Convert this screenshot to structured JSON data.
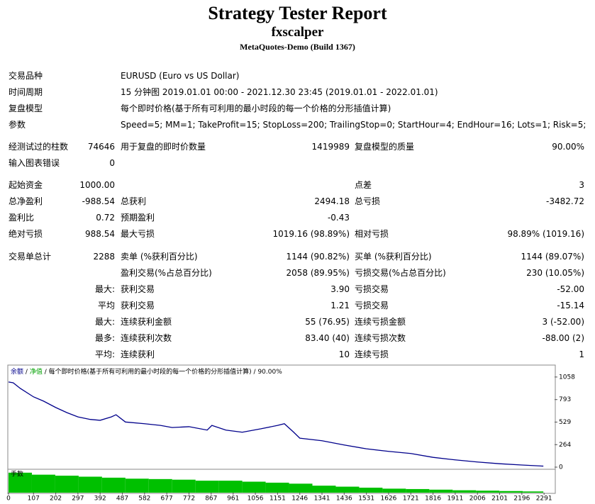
{
  "header": {
    "title": "Strategy Tester Report",
    "subtitle": "fxscalper",
    "build": "MetaQuotes-Demo (Build 1367)"
  },
  "table": {
    "sections": [
      [
        [
          "交易品种",
          null,
          "EURUSD (Euro vs US Dollar)",
          null,
          null,
          null
        ],
        [
          "时间周期",
          null,
          "15 分钟图 2019.01.01 00:00 - 2021.12.30 23:45 (2019.01.01 - 2022.01.01)",
          null,
          null,
          null
        ],
        [
          "复盘模型",
          null,
          "每个即时价格(基于所有可利用的最小时段的每一个价格的分形插值计算)",
          null,
          null,
          null
        ],
        [
          "参数",
          null,
          "Speed=5; MM=1; TakeProfit=15; StopLoss=200; TrailingStop=0; StartHour=4; EndHour=16; Lots=1; Risk=5;",
          null,
          null,
          null
        ]
      ],
      [
        [
          "经测试过的柱数",
          "74646",
          "用于复盘的即时价数量",
          "1419989",
          "复盘模型的质量",
          "90.00%"
        ],
        [
          "输入图表错误",
          "0",
          null,
          null,
          null,
          null
        ]
      ],
      [
        [
          "起始资金",
          "1000.00",
          null,
          null,
          "点差",
          "3"
        ],
        [
          "总净盈利",
          "-988.54",
          "总获利",
          "2494.18",
          "总亏损",
          "-3482.72"
        ],
        [
          "盈利比",
          "0.72",
          "预期盈利",
          "-0.43",
          null,
          null
        ],
        [
          "绝对亏损",
          "988.54",
          "最大亏损",
          "1019.16 (98.89%)",
          "相对亏损",
          "98.89% (1019.16)"
        ]
      ],
      [
        [
          "交易单总计",
          "2288",
          "卖单 (%获利百分比)",
          "1144 (90.82%)",
          "买单 (%获利百分比)",
          "1144 (89.07%)"
        ],
        [
          null,
          null,
          "盈利交易(%占总百分比)",
          "2058 (89.95%)",
          "亏损交易(%占总百分比)",
          "230 (10.05%)"
        ],
        [
          null,
          "最大:",
          "获利交易",
          "3.90",
          "亏损交易",
          "-52.00"
        ],
        [
          null,
          "平均",
          "获利交易",
          "1.21",
          "亏损交易",
          "-15.14"
        ],
        [
          null,
          "最大:",
          "连续获利金额",
          "55 (76.95)",
          "连续亏损金额",
          "3 (-52.00)"
        ],
        [
          null,
          "最多:",
          "连续获利次数",
          "83.40 (40)",
          "连续亏损次数",
          "-88.00 (2)"
        ],
        [
          null,
          "平均:",
          "连续获利",
          "10",
          "连续亏损",
          "1"
        ]
      ]
    ]
  },
  "chart_data": {
    "type": "line",
    "legend": {
      "separator": "/",
      "model": "每个即时价格(基于所有可利用的最小时段的每一个价格的分形插值计算)",
      "quality": "90.00%"
    },
    "series": [
      {
        "name": "余额",
        "color": "#00008b",
        "x": [
          0,
          20,
          50,
          107,
          150,
          202,
          250,
          297,
          350,
          392,
          440,
          460,
          500,
          582,
          650,
          700,
          772,
          850,
          870,
          930,
          1000,
          1080,
          1151,
          1180,
          1220,
          1246,
          1341,
          1436,
          1531,
          1626,
          1721,
          1816,
          1911,
          2006,
          2101,
          2196,
          2288
        ],
        "values": [
          1000,
          990,
          925,
          825,
          775,
          700,
          640,
          590,
          560,
          550,
          590,
          615,
          530,
          510,
          490,
          465,
          475,
          435,
          490,
          435,
          410,
          450,
          490,
          510,
          410,
          340,
          310,
          260,
          215,
          185,
          160,
          115,
          85,
          60,
          40,
          25,
          12
        ]
      },
      {
        "name": "净值",
        "color": "#00a000"
      }
    ],
    "lots": {
      "name": "手数",
      "color": "#00c000",
      "x": [
        0,
        100,
        200,
        300,
        400,
        500,
        600,
        700,
        800,
        900,
        1000,
        1100,
        1200,
        1300,
        1400,
        1500,
        1600,
        1700,
        1800,
        1900,
        2000,
        2100,
        2200
      ],
      "values": [
        10,
        9,
        8.5,
        8,
        7.5,
        7,
        6.8,
        6.5,
        6,
        6,
        5.5,
        5,
        4.5,
        3.5,
        3,
        2.5,
        2,
        1.8,
        1.5,
        1.2,
        1,
        0.8,
        0.6
      ],
      "ylim": [
        0,
        11
      ]
    },
    "xlim": [
      0,
      2336
    ],
    "xticks": [
      0,
      107,
      202,
      297,
      392,
      487,
      582,
      677,
      772,
      867,
      961,
      1056,
      1151,
      1246,
      1341,
      1436,
      1531,
      1626,
      1721,
      1816,
      1911,
      2006,
      2101,
      2196,
      2291
    ],
    "ylim": [
      -25,
      1190
    ],
    "yticks": [
      0,
      264,
      529,
      793,
      1058
    ]
  }
}
